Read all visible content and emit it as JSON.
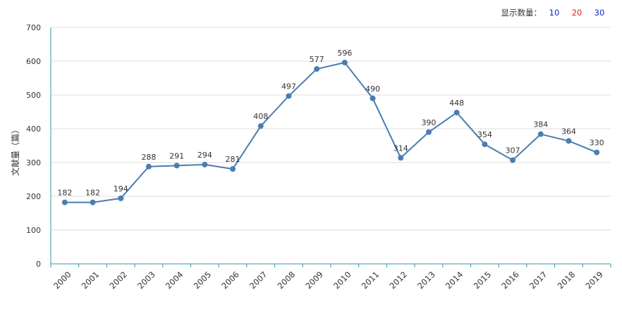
{
  "controls": {
    "label": "显示数量：",
    "options": [
      {
        "text": "10",
        "color": "#1a24c9"
      },
      {
        "text": "20",
        "color": "#d8262f"
      },
      {
        "text": "30",
        "color": "#1a24c9"
      }
    ]
  },
  "colors": {
    "line": "#4a7db3",
    "axis": "#2f9aa6",
    "grid": "#dddddd"
  },
  "chart_data": {
    "type": "line",
    "title": "",
    "xlabel": "",
    "ylabel": "文献量（篇）",
    "ylim": [
      0,
      700
    ],
    "yticks": [
      0,
      100,
      200,
      300,
      400,
      500,
      600,
      700
    ],
    "grid": true,
    "x": [
      "2000",
      "2001",
      "2002",
      "2003",
      "2004",
      "2005",
      "2006",
      "2007",
      "2008",
      "2009",
      "2010",
      "2011",
      "2012",
      "2013",
      "2014",
      "2015",
      "2016",
      "2017",
      "2018",
      "2019"
    ],
    "series": [
      {
        "values": [
          182,
          182,
          194,
          288,
          291,
          294,
          281,
          408,
          497,
          577,
          596,
          490,
          314,
          390,
          448,
          354,
          307,
          384,
          364,
          330
        ]
      }
    ]
  }
}
